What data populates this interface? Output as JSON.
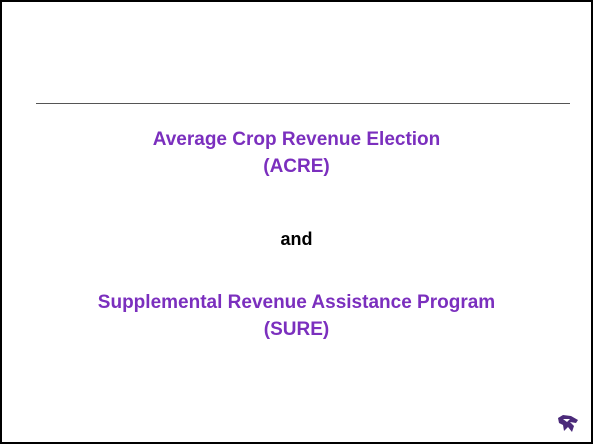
{
  "slide": {
    "title_line1": "Average Crop Revenue Election",
    "title_line2": "(ACRE)",
    "conjunction": "and",
    "subtitle_line1": "Supplemental Revenue Assistance Program",
    "subtitle_line2": "(SURE)"
  }
}
